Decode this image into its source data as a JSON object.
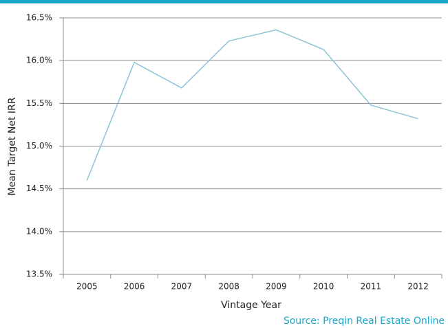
{
  "chart_data": {
    "type": "line",
    "x_label": "Vintage Year",
    "y_label": "Mean Target Net IRR",
    "source": "Source: Preqin Real Estate Online",
    "categories": [
      "2005",
      "2006",
      "2007",
      "2008",
      "2009",
      "2010",
      "2011",
      "2012"
    ],
    "series": [
      {
        "name": "Mean Target Net IRR",
        "color": "#8dc3d6",
        "values": [
          14.6,
          15.98,
          15.68,
          16.23,
          16.36,
          16.13,
          15.48,
          15.32
        ]
      }
    ],
    "ylim": [
      13.5,
      16.5
    ],
    "yticks": [
      {
        "value": 13.5,
        "label": "13.5%"
      },
      {
        "value": 14.0,
        "label": "14.0%"
      },
      {
        "value": 14.5,
        "label": "14.5%"
      },
      {
        "value": 15.0,
        "label": "15.0%"
      },
      {
        "value": 15.5,
        "label": "15.5%"
      },
      {
        "value": 16.0,
        "label": "16.0%"
      },
      {
        "value": 16.5,
        "label": "16.5%"
      }
    ],
    "grid": true
  }
}
